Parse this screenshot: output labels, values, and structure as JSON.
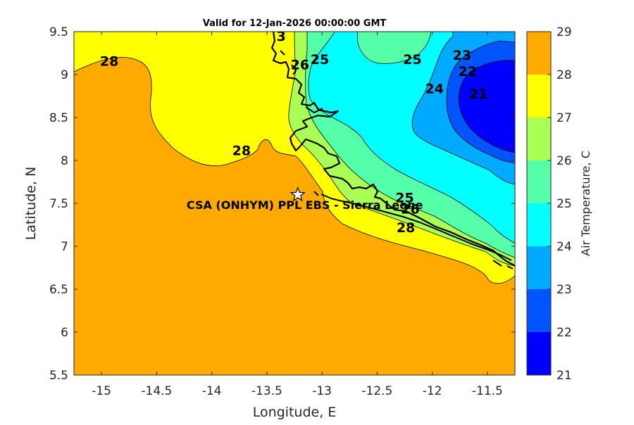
{
  "title": "Valid for 12-Jan-2026 00:00:00 GMT",
  "axes": {
    "xlabel": "Longitude, E",
    "ylabel": "Latitude, N",
    "xlim": [
      -15.25,
      -11.25
    ],
    "ylim": [
      5.5,
      9.5
    ],
    "xticks": [
      -15,
      -14.5,
      -14,
      -13.5,
      -13,
      -12.5,
      -12,
      -11.5
    ],
    "yticks": [
      5.5,
      6,
      6.5,
      7,
      7.5,
      8,
      8.5,
      9,
      9.5
    ],
    "xtick_labels": [
      "-15",
      "-14.5",
      "-14",
      "-13.5",
      "-13",
      "-12.5",
      "-12",
      "-11.5"
    ],
    "ytick_labels": [
      "5.5",
      "6",
      "6.5",
      "7",
      "7.5",
      "8",
      "8.5",
      "9",
      "9.5"
    ]
  },
  "colorbar": {
    "label": "Air Temperature, C",
    "levels": [
      21,
      22,
      23,
      24,
      25,
      26,
      27,
      28,
      29
    ],
    "tick_labels": [
      "21",
      "22",
      "23",
      "24",
      "25",
      "26",
      "27",
      "28",
      "29"
    ],
    "colors": [
      "#0000ff",
      "#0055ff",
      "#00aaff",
      "#00ffff",
      "#55ffaa",
      "#aaff55",
      "#ffff00",
      "#ffaa00",
      "#ff5500"
    ]
  },
  "site": {
    "label": "CSA (ONHYM) PPL EBS  - Sierra Leone",
    "lon": -13.22,
    "lat": 7.6,
    "marker": "star-icon"
  },
  "contour_labels": [
    {
      "text": "28",
      "lon": -14.93,
      "lat": 9.16
    },
    {
      "text": "28",
      "lon": -13.73,
      "lat": 8.12
    },
    {
      "text": "28",
      "lon": -12.24,
      "lat": 7.22
    },
    {
      "text": "25",
      "lon": -13.02,
      "lat": 9.18
    },
    {
      "text": "25",
      "lon": -12.18,
      "lat": 9.18
    },
    {
      "text": "25",
      "lon": -12.25,
      "lat": 7.57
    },
    {
      "text": "26",
      "lon": -13.2,
      "lat": 9.12
    },
    {
      "text": "26",
      "lon": -12.2,
      "lat": 7.44
    },
    {
      "text": "24",
      "lon": -11.98,
      "lat": 8.84
    },
    {
      "text": "23",
      "lon": -11.73,
      "lat": 9.23
    },
    {
      "text": "22",
      "lon": -11.68,
      "lat": 9.04
    },
    {
      "text": "21",
      "lon": -11.58,
      "lat": 8.78
    },
    {
      "text": "3",
      "lon": -13.37,
      "lat": 9.45
    }
  ],
  "chart_data": {
    "type": "heatmap",
    "title": "Valid for 12-Jan-2026 00:00:00 GMT",
    "xlabel": "Longitude, E",
    "ylabel": "Latitude, N",
    "xlim": [
      -15.25,
      -11.25
    ],
    "ylim": [
      5.5,
      9.5
    ],
    "value_label": "Air Temperature, C",
    "color_range": [
      21,
      29
    ],
    "contour_levels": [
      21,
      22,
      23,
      24,
      25,
      26,
      27,
      28
    ],
    "regions": [
      {
        "band": "27-28",
        "description_lon_range": [
          -15.25,
          -12.9
        ],
        "description_lat_range": [
          7.95,
          9.5
        ]
      },
      {
        "band": "28-29",
        "description_lon_range": [
          -15.25,
          -11.25
        ],
        "description_lat_range": [
          5.5,
          8.0
        ]
      },
      {
        "band": "21-22",
        "description_lon_range": [
          -11.75,
          -11.25
        ],
        "description_lat_range": [
          8.05,
          9.2
        ]
      }
    ],
    "marker": {
      "label": "CSA (ONHYM) PPL EBS  - Sierra Leone",
      "lon": -13.22,
      "lat": 7.6
    }
  }
}
